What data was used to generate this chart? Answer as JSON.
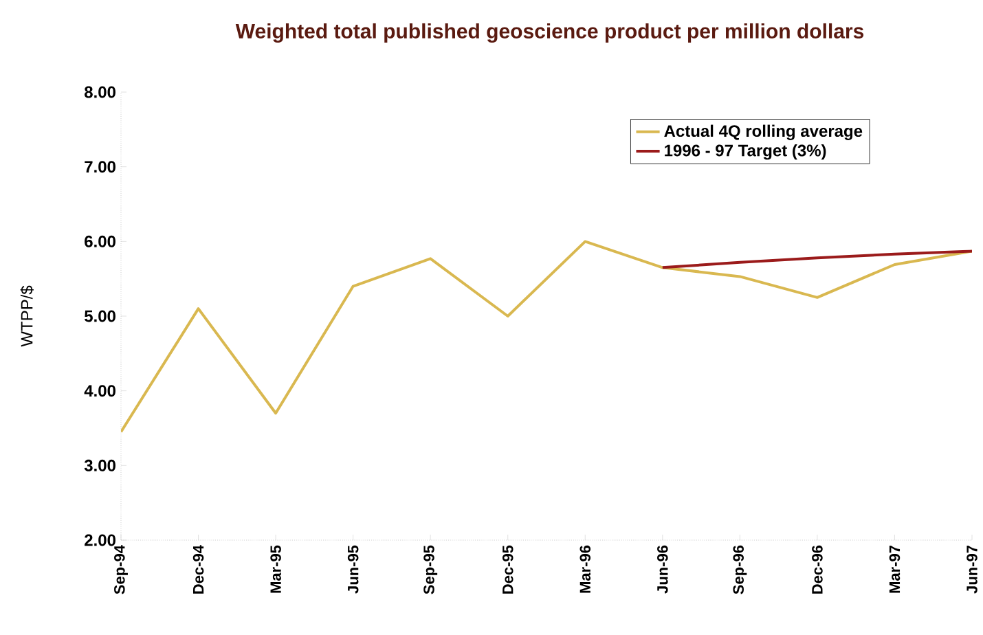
{
  "chart_data": {
    "type": "line",
    "title": "Weighted total published geoscience product per million dollars",
    "ylabel": "WTPP/$",
    "categories": [
      "Sep-94",
      "Dec-94",
      "Mar-95",
      "Jun-95",
      "Sep-95",
      "Dec-95",
      "Mar-96",
      "Jun-96",
      "Sep-96",
      "Dec-96",
      "Mar-97",
      "Jun-97"
    ],
    "series": [
      {
        "name": "Actual 4Q rolling average",
        "color": "#d9b850",
        "values": [
          3.45,
          5.1,
          3.7,
          5.4,
          5.77,
          5.0,
          6.0,
          5.65,
          5.53,
          5.25,
          5.69,
          5.87
        ]
      },
      {
        "name": "1996 - 97 Target (3%)",
        "color": "#9b1b1b",
        "values": [
          null,
          null,
          null,
          null,
          null,
          null,
          null,
          5.65,
          5.72,
          5.78,
          5.83,
          5.87
        ]
      }
    ],
    "ylim": [
      2,
      8
    ],
    "yticks": [
      {
        "value": 2,
        "label": "2.00"
      },
      {
        "value": 3,
        "label": "3.00"
      },
      {
        "value": 4,
        "label": "4.00"
      },
      {
        "value": 5,
        "label": "5.00"
      },
      {
        "value": 6,
        "label": "6.00"
      },
      {
        "value": 7,
        "label": "7.00"
      },
      {
        "value": 8,
        "label": "8.00"
      }
    ],
    "legend": "top right"
  }
}
